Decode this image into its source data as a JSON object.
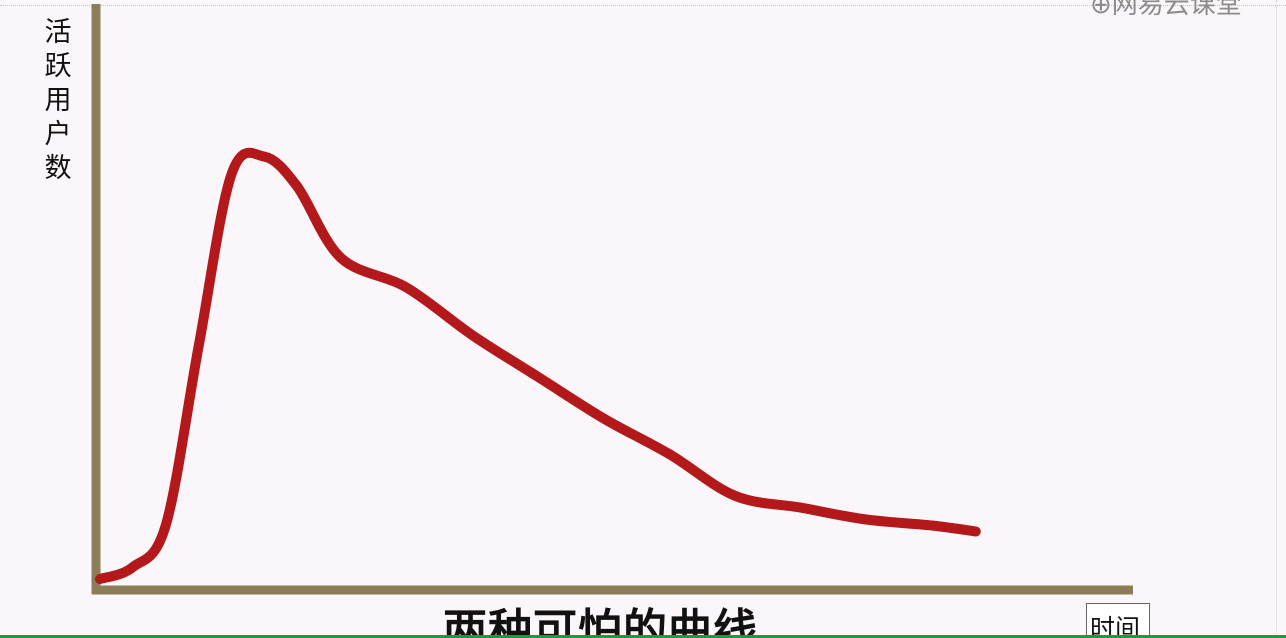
{
  "watermark": "⊕网易云课堂",
  "caption": "两种可怕的曲线",
  "chart_data": {
    "type": "line",
    "title": "",
    "xlabel": "时间",
    "ylabel": "活跃用户数",
    "axes_color": "#8b7d57",
    "series": [
      {
        "color": "#b3191b",
        "x": [
          0,
          3,
          6,
          9,
          12,
          15,
          18,
          22,
          28,
          34,
          40,
          46,
          52,
          58,
          64,
          70,
          76,
          80
        ],
        "y": [
          1,
          3,
          10,
          40,
          69,
          72,
          67,
          55,
          50,
          42,
          35,
          28,
          22,
          15,
          13,
          11,
          10,
          9
        ]
      }
    ],
    "xlim": [
      0,
      95
    ],
    "ylim": [
      0,
      100
    ]
  }
}
